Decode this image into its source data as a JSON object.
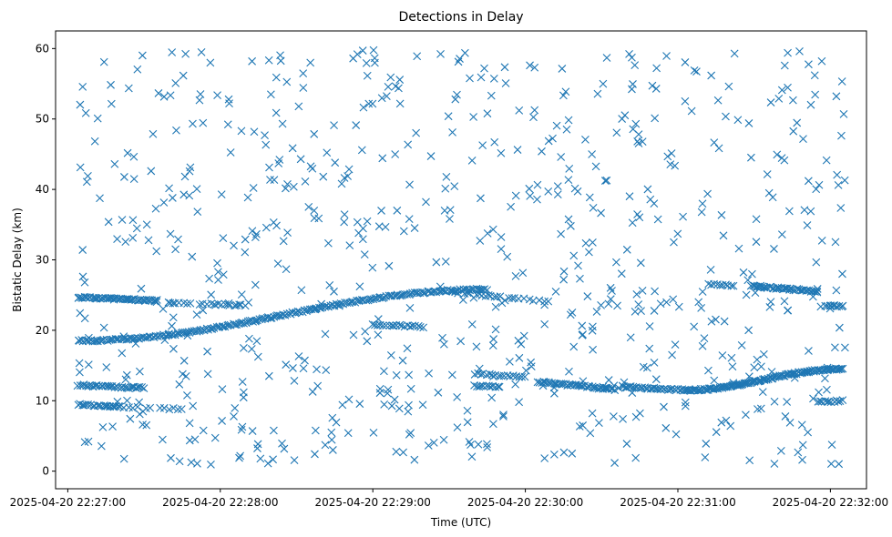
{
  "chart_data": {
    "type": "scatter",
    "title": "Detections in Delay",
    "xlabel": "Time (UTC)",
    "ylabel": "Bistatic Delay (km)",
    "x_tick_labels": [
      "2025-04-20 22:27:00",
      "2025-04-20 22:28:00",
      "2025-04-20 22:29:00",
      "2025-04-20 22:30:00",
      "2025-04-20 22:31:00",
      "2025-04-20 22:32:00"
    ],
    "x_ticks_seconds": [
      0,
      60,
      120,
      180,
      240,
      300
    ],
    "xlim": [
      "2025-04-20 22:26:55",
      "2025-04-20 22:32:15"
    ],
    "xlim_seconds": [
      -4.8,
      314.2
    ],
    "y_ticks": [
      0,
      10,
      20,
      30,
      40,
      50,
      60
    ],
    "ylim": [
      -2.5,
      62.5
    ],
    "grid": false,
    "marker": "x",
    "color": "#1f77b4",
    "tracks": [
      {
        "x": [
          4,
          165
        ],
        "y": [
          18.5,
          25.8
        ],
        "shape": "sine",
        "n": 220
      },
      {
        "x": [
          4,
          35
        ],
        "y": [
          24.7,
          24.2
        ],
        "shape": "linear",
        "n": 50
      },
      {
        "x": [
          35,
          70
        ],
        "y": [
          24.0,
          23.5
        ],
        "shape": "linear",
        "n": 40,
        "gappy": true
      },
      {
        "x": [
          4,
          30
        ],
        "y": [
          12.2,
          11.8
        ],
        "shape": "linear",
        "n": 35
      },
      {
        "x": [
          4,
          20
        ],
        "y": [
          9.5,
          9.2
        ],
        "shape": "linear",
        "n": 20
      },
      {
        "x": [
          15,
          45
        ],
        "y": [
          9.2,
          8.8
        ],
        "shape": "linear",
        "n": 18,
        "gappy": true
      },
      {
        "x": [
          150,
          190
        ],
        "y": [
          25.5,
          24.0
        ],
        "shape": "linear",
        "n": 35,
        "gappy": true
      },
      {
        "x": [
          120,
          140
        ],
        "y": [
          20.8,
          20.5
        ],
        "shape": "linear",
        "n": 20
      },
      {
        "x": [
          160,
          180
        ],
        "y": [
          13.8,
          13.4
        ],
        "shape": "linear",
        "n": 18
      },
      {
        "x": [
          160,
          170
        ],
        "y": [
          12.1,
          12.0
        ],
        "shape": "linear",
        "n": 12
      },
      {
        "x": [
          185,
          215
        ],
        "y": [
          12.7,
          11.6
        ],
        "shape": "linear",
        "n": 45
      },
      {
        "x": [
          218,
          243
        ],
        "y": [
          12.0,
          11.5
        ],
        "shape": "linear",
        "n": 35
      },
      {
        "x": [
          243,
          305
        ],
        "y": [
          11.5,
          14.5
        ],
        "shape": "sine",
        "n": 130
      },
      {
        "x": [
          252,
          262
        ],
        "y": [
          26.5,
          26.3
        ],
        "shape": "linear",
        "n": 10
      },
      {
        "x": [
          269,
          295
        ],
        "y": [
          26.3,
          25.5
        ],
        "shape": "linear",
        "n": 45
      },
      {
        "x": [
          298,
          305
        ],
        "y": [
          23.5,
          23.4
        ],
        "shape": "linear",
        "n": 10
      },
      {
        "x": [
          295,
          305
        ],
        "y": [
          9.8,
          10.0
        ],
        "shape": "linear",
        "n": 12
      }
    ],
    "clutter": {
      "count": 720,
      "x": [
        4,
        306
      ],
      "y": [
        0.8,
        59.8
      ],
      "seed": 20250420
    }
  }
}
